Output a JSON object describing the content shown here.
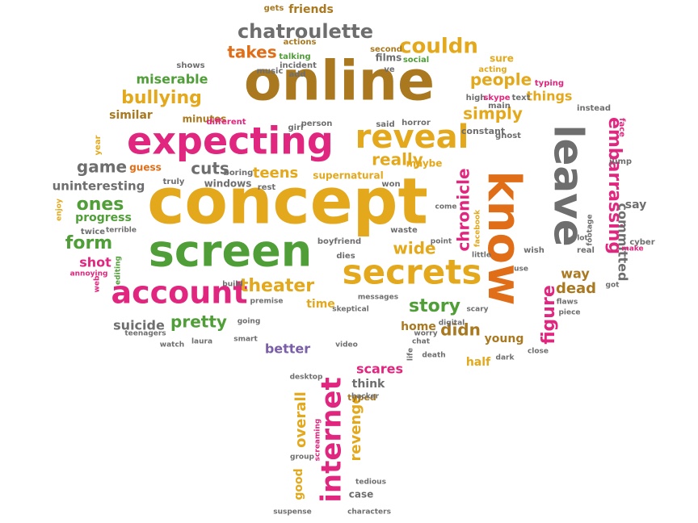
{
  "colors": {
    "brown": "#a9781f",
    "gold": "#e3a81b",
    "pink": "#e0267e",
    "green": "#4f9e37",
    "gray": "#6e6e6e",
    "orange": "#e06d17",
    "purple": "#7a5ea8",
    "magenta": "#c8287a"
  },
  "words": [
    {
      "text": "concept",
      "color": "gold"
    },
    {
      "text": "online",
      "color": "brown"
    },
    {
      "text": "know",
      "color": "orange"
    },
    {
      "text": "screen",
      "color": "green"
    },
    {
      "text": "leave",
      "color": "gray"
    },
    {
      "text": "expecting",
      "color": "pink"
    },
    {
      "text": "secrets",
      "color": "gold"
    },
    {
      "text": "account",
      "color": "pink"
    },
    {
      "text": "reveal",
      "color": "gold"
    },
    {
      "text": "internet",
      "color": "pink"
    },
    {
      "text": "chatroulette",
      "color": "gray"
    },
    {
      "text": "embarrassing",
      "color": "pink"
    },
    {
      "text": "bullying",
      "color": "gold"
    },
    {
      "text": "couldn",
      "color": "gold"
    },
    {
      "text": "theater",
      "color": "gold"
    },
    {
      "text": "story",
      "color": "green"
    },
    {
      "text": "figure",
      "color": "pink"
    },
    {
      "text": "chronicle",
      "color": "pink"
    },
    {
      "text": "people",
      "color": "gold"
    },
    {
      "text": "simply",
      "color": "gold"
    },
    {
      "text": "takes",
      "color": "orange"
    },
    {
      "text": "cuts",
      "color": "gray"
    },
    {
      "text": "teens",
      "color": "gold"
    },
    {
      "text": "really",
      "color": "gold"
    },
    {
      "text": "game",
      "color": "gray"
    },
    {
      "text": "ones",
      "color": "green"
    },
    {
      "text": "form",
      "color": "green"
    },
    {
      "text": "wide",
      "color": "gold"
    },
    {
      "text": "pretty",
      "color": "green"
    },
    {
      "text": "didn",
      "color": "brown"
    },
    {
      "text": "overall",
      "color": "gold"
    },
    {
      "text": "revenge",
      "color": "gold"
    },
    {
      "text": "committed",
      "color": "gray"
    },
    {
      "text": "dead",
      "color": "brown"
    },
    {
      "text": "way",
      "color": "brown"
    },
    {
      "text": "miserable",
      "color": "green"
    },
    {
      "text": "things",
      "color": "gold"
    },
    {
      "text": "uninteresting",
      "color": "gray"
    },
    {
      "text": "progress",
      "color": "green"
    },
    {
      "text": "shot",
      "color": "pink"
    },
    {
      "text": "suicide",
      "color": "gray"
    },
    {
      "text": "similar",
      "color": "brown"
    },
    {
      "text": "scares",
      "color": "pink"
    },
    {
      "text": "home",
      "color": "brown"
    },
    {
      "text": "young",
      "color": "brown"
    },
    {
      "text": "half",
      "color": "gold"
    },
    {
      "text": "better",
      "color": "purple"
    },
    {
      "text": "say",
      "color": "gray"
    },
    {
      "text": "good",
      "color": "gold"
    },
    {
      "text": "think",
      "color": "gray"
    },
    {
      "text": "friends",
      "color": "brown"
    },
    {
      "text": "time",
      "color": "gold"
    },
    {
      "text": "minutes",
      "color": "brown"
    },
    {
      "text": "guess",
      "color": "orange"
    },
    {
      "text": "supernatural",
      "color": "gold"
    },
    {
      "text": "windows",
      "color": "gray"
    },
    {
      "text": "films",
      "color": "gray"
    },
    {
      "text": "sure",
      "color": "gold"
    },
    {
      "text": "maybe",
      "color": "gold"
    },
    {
      "text": "case",
      "color": "gray"
    },
    {
      "text": "typed",
      "color": "brown"
    },
    {
      "text": "constant",
      "color": "gray"
    },
    {
      "text": "gets",
      "color": "brown"
    },
    {
      "text": "actions",
      "color": "brown"
    },
    {
      "text": "second",
      "color": "brown"
    },
    {
      "text": "talking",
      "color": "green"
    },
    {
      "text": "incident",
      "color": "gray"
    },
    {
      "text": "social",
      "color": "green"
    },
    {
      "text": "acting",
      "color": "gold"
    },
    {
      "text": "music",
      "color": "gray"
    },
    {
      "text": "add",
      "color": "gray"
    },
    {
      "text": "ve",
      "color": "gray"
    },
    {
      "text": "shows",
      "color": "gray"
    },
    {
      "text": "typing",
      "color": "pink"
    },
    {
      "text": "high",
      "color": "gray"
    },
    {
      "text": "skype",
      "color": "pink"
    },
    {
      "text": "text",
      "color": "gray"
    },
    {
      "text": "main",
      "color": "gray"
    },
    {
      "text": "instead",
      "color": "gray"
    },
    {
      "text": "different",
      "color": "pink"
    },
    {
      "text": "horror",
      "color": "gray"
    },
    {
      "text": "girl",
      "color": "gray"
    },
    {
      "text": "person",
      "color": "gray"
    },
    {
      "text": "said",
      "color": "gray"
    },
    {
      "text": "ghost",
      "color": "gray"
    },
    {
      "text": "face",
      "color": "pink"
    },
    {
      "text": "year",
      "color": "gold"
    },
    {
      "text": "boring",
      "color": "gray"
    },
    {
      "text": "truly",
      "color": "gray"
    },
    {
      "text": "rest",
      "color": "gray"
    },
    {
      "text": "won",
      "color": "gray"
    },
    {
      "text": "jump",
      "color": "gray"
    },
    {
      "text": "enjoy",
      "color": "gold"
    },
    {
      "text": "twice",
      "color": "gray"
    },
    {
      "text": "terrible",
      "color": "gray"
    },
    {
      "text": "come",
      "color": "gray"
    },
    {
      "text": "waste",
      "color": "gray"
    },
    {
      "text": "facebook",
      "color": "gold"
    },
    {
      "text": "footage",
      "color": "gray"
    },
    {
      "text": "boyfriend",
      "color": "gray"
    },
    {
      "text": "point",
      "color": "gray"
    },
    {
      "text": "little",
      "color": "gray"
    },
    {
      "text": "wish",
      "color": "gray"
    },
    {
      "text": "lot",
      "color": "gray"
    },
    {
      "text": "ll",
      "color": "gray"
    },
    {
      "text": "real",
      "color": "gray"
    },
    {
      "text": "cyber",
      "color": "gray"
    },
    {
      "text": "make",
      "color": "pink"
    },
    {
      "text": "dies",
      "color": "gray"
    },
    {
      "text": "editing",
      "color": "green"
    },
    {
      "text": "annoying",
      "color": "pink"
    },
    {
      "text": "web",
      "color": "pink"
    },
    {
      "text": "build",
      "color": "gray"
    },
    {
      "text": "premise",
      "color": "gray"
    },
    {
      "text": "messages",
      "color": "gray"
    },
    {
      "text": "use",
      "color": "gray"
    },
    {
      "text": "got",
      "color": "gray"
    },
    {
      "text": "flaws",
      "color": "gray"
    },
    {
      "text": "skeptical",
      "color": "gray"
    },
    {
      "text": "scary",
      "color": "gray"
    },
    {
      "text": "piece",
      "color": "gray"
    },
    {
      "text": "going",
      "color": "gray"
    },
    {
      "text": "teenagers",
      "color": "gray"
    },
    {
      "text": "smart",
      "color": "gray"
    },
    {
      "text": "digital",
      "color": "gray"
    },
    {
      "text": "worry",
      "color": "gray"
    },
    {
      "text": "chat",
      "color": "gray"
    },
    {
      "text": "watch",
      "color": "gray"
    },
    {
      "text": "laura",
      "color": "gray"
    },
    {
      "text": "video",
      "color": "gray"
    },
    {
      "text": "life",
      "color": "gray"
    },
    {
      "text": "death",
      "color": "gray"
    },
    {
      "text": "dark",
      "color": "gray"
    },
    {
      "text": "close",
      "color": "gray"
    },
    {
      "text": "desktop",
      "color": "gray"
    },
    {
      "text": "hacker",
      "color": "gray"
    },
    {
      "text": "screaming",
      "color": "pink"
    },
    {
      "text": "group",
      "color": "gray"
    },
    {
      "text": "tedious",
      "color": "gray"
    },
    {
      "text": "suspense",
      "color": "gray"
    },
    {
      "text": "characters",
      "color": "gray"
    }
  ]
}
